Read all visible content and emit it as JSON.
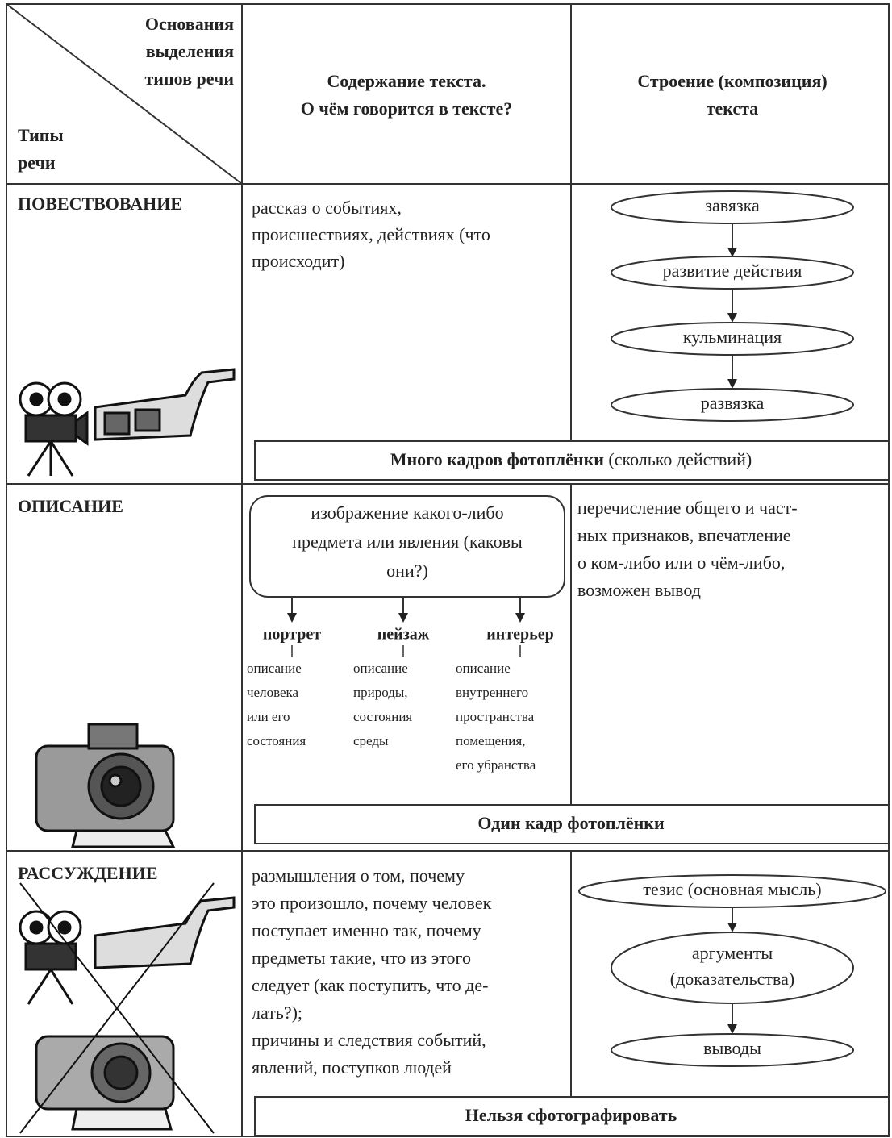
{
  "header": {
    "corner_top": [
      "Основания",
      "выделения",
      "типов речи"
    ],
    "corner_bottom": [
      "Типы",
      "речи"
    ],
    "content": [
      "Содержание текста.",
      "О чём говорится в тексте?"
    ],
    "structure": [
      "Строение (композиция)",
      "текста"
    ]
  },
  "rows": [
    {
      "type": "ПОВЕСТВОВАНИЕ",
      "content": [
        "рассказ о событиях,",
        "происшествиях, действиях (что",
        "происходит)"
      ],
      "structure": [
        "завязка",
        "развитие действия",
        "кульминация",
        "развязка"
      ],
      "banner": {
        "bold": "Много кадров фотоплёнки",
        "normal": "(сколько действий)"
      }
    },
    {
      "type": "ОПИСАНИЕ",
      "content": [
        "изображение какого-либо",
        "предмета или явления (каковы",
        "они?)"
      ],
      "kinds": [
        {
          "name": "портрет",
          "desc": [
            "описание",
            "человека",
            "или его",
            "состояния"
          ]
        },
        {
          "name": "пейзаж",
          "desc": [
            "описание",
            "природы,",
            "состояния",
            "среды"
          ]
        },
        {
          "name": "интерьер",
          "desc": [
            "описание",
            "внутреннего",
            "пространства",
            "помещения,",
            "его убранства"
          ]
        }
      ],
      "structure": [
        "перечисление общего и част-",
        "ных признаков, впечатление",
        "о ком-либо или о чём-либо,",
        "возможен вывод"
      ],
      "banner": {
        "bold": "Один кадр фотоплёнки"
      }
    },
    {
      "type": "РАССУЖДЕНИЕ",
      "content": [
        "размышления о том, почему",
        "это произошло, почему человек",
        "поступает именно так, почему",
        "предметы такие, что из этого",
        "следует (как поступить, что де-",
        "лать?);",
        "причины и следствия событий,",
        "явлений, поступков людей"
      ],
      "structure": [
        [
          "тезис (основная мысль)"
        ],
        [
          "аргументы",
          "(доказательства)"
        ],
        [
          "выводы"
        ]
      ],
      "banner": {
        "bold": "Нельзя сфотографировать"
      }
    }
  ]
}
